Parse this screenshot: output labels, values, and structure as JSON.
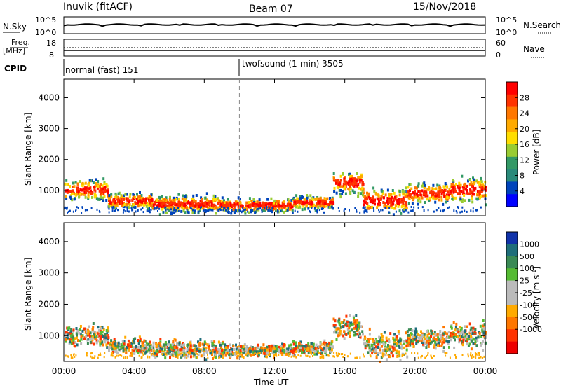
{
  "header": {
    "station": "Inuvik (fitACF)",
    "beam": "Beam 07",
    "date": "15/Nov/2018"
  },
  "panels": {
    "nsky_label": "N.Sky",
    "nsky_ticks": [
      "10^5",
      "10^0"
    ],
    "nsearch_label": "N.Search",
    "nsearch_ticks": [
      "10^5",
      "10^0"
    ],
    "freq_label": "Freq.",
    "freq_unit": "[MHz]",
    "freq_ticks": [
      "18",
      "8"
    ],
    "nave_label": "Nave",
    "nave_ticks": [
      "60",
      "0"
    ],
    "cpid_label": "CPID",
    "cpid_segments": [
      {
        "name": "normal (fast) 151",
        "start_hour": 0
      },
      {
        "name": "twofsound (1-min) 3505",
        "start_hour": 10
      }
    ]
  },
  "chart_data": [
    {
      "type": "heatmap",
      "parameter": "Power",
      "ylabel": "Slant Range [km]",
      "xlabel": "",
      "x_ticks": [
        "00:00",
        "04:00",
        "08:00",
        "12:00",
        "16:00",
        "20:00",
        "00:00"
      ],
      "xlim_hours": [
        0,
        24
      ],
      "y_ticks": [
        "1000",
        "2000",
        "3000",
        "4000"
      ],
      "ylim": [
        180,
        4600
      ],
      "colorbar_label": "Power [dB]",
      "colorbar_ticks": [
        "28",
        "24",
        "20",
        "16",
        "12",
        "8",
        "4"
      ],
      "colorbar_colors": [
        "#ff0000",
        "#ff3300",
        "#ff7700",
        "#ffaa00",
        "#ffdd00",
        "#99cc33",
        "#339966",
        "#2a8a7a",
        "#0044bb",
        "#0000ff"
      ],
      "dashed_marker_hour": 10
    },
    {
      "type": "heatmap",
      "parameter": "Velocity",
      "ylabel": "Slant Range [km]",
      "xlabel": "Time UT",
      "x_ticks": [
        "00:00",
        "04:00",
        "08:00",
        "12:00",
        "16:00",
        "20:00",
        "00:00"
      ],
      "xlim_hours": [
        0,
        24
      ],
      "y_ticks": [
        "1000",
        "2000",
        "3000",
        "4000"
      ],
      "ylim": [
        180,
        4600
      ],
      "colorbar_label": "Velocity [m s",
      "colorbar_superscript": "-1",
      "colorbar_ticks": [
        "1000",
        "500",
        "100",
        "25",
        "-25",
        "-100",
        "-500",
        "-1000"
      ],
      "colorbar_colors": [
        "#1133aa",
        "#1f6e7a",
        "#3a8a55",
        "#55bb33",
        "#bbbbbb",
        "#bbbbbb",
        "#ffaa00",
        "#ff7700",
        "#ff3300",
        "#ee0000"
      ],
      "dashed_marker_hour": 10
    }
  ]
}
